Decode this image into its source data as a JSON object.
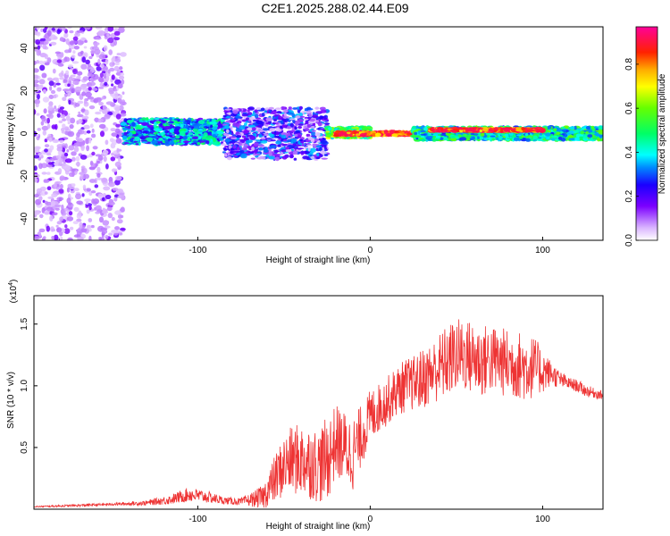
{
  "title": "C2E1.2025.288.02.44.E09",
  "chart_data": [
    {
      "type": "heatmap",
      "xlabel": "Height of straight line (km)",
      "ylabel": "Frequency (Hz)",
      "xlim": [
        -195,
        135
      ],
      "ylim": [
        -50,
        50
      ],
      "x_ticks": [
        {
          "value": -100,
          "label": "-100"
        },
        {
          "value": 0,
          "label": "0"
        },
        {
          "value": 100,
          "label": "100"
        }
      ],
      "y_ticks": [
        {
          "value": -40,
          "label": "-40"
        },
        {
          "value": -20,
          "label": "-20"
        },
        {
          "value": 0,
          "label": "0"
        },
        {
          "value": 20,
          "label": "20"
        },
        {
          "value": 40,
          "label": "40"
        }
      ],
      "colorbar": {
        "label": "Normalized spectral amplitude",
        "range": [
          0,
          0.97
        ],
        "ticks": [
          {
            "value": 0.0,
            "label": "0.0"
          },
          {
            "value": 0.2,
            "label": "0.2"
          },
          {
            "value": 0.4,
            "label": "0.4"
          },
          {
            "value": 0.6,
            "label": "0.6"
          },
          {
            "value": 0.8,
            "label": "0.8"
          }
        ]
      },
      "regions": [
        {
          "name": "noise",
          "x": [
            -195,
            -143
          ],
          "y": [
            -50,
            50
          ],
          "amplitude": 0.1
        },
        {
          "name": "band-early",
          "x": [
            -143,
            -85
          ],
          "y": [
            -5,
            7
          ],
          "amplitude": 0.35
        },
        {
          "name": "band-turbulent",
          "x": [
            -85,
            -25
          ],
          "y": [
            -12,
            12
          ],
          "amplitude": 0.2
        },
        {
          "name": "band-transition",
          "x": [
            -25,
            0
          ],
          "y": [
            -2,
            3
          ],
          "amplitude": 0.55
        },
        {
          "name": "band-strong",
          "x": [
            -20,
            25
          ],
          "y": [
            -0.8,
            0.8
          ],
          "amplitude": 0.9
        },
        {
          "name": "band-steady",
          "x": [
            25,
            135
          ],
          "y": [
            -3,
            3
          ],
          "amplitude": 0.45
        },
        {
          "name": "band-peak",
          "x": [
            35,
            100
          ],
          "y": [
            1.2,
            2.2
          ],
          "amplitude": 0.9
        }
      ]
    },
    {
      "type": "line",
      "xlabel": "Height of straight line (km)",
      "ylabel": "SNR (10 * v/v)",
      "y_multiplier": "(x10",
      "y_multiplier_exp": "4",
      "y_multiplier_close": ")",
      "xlim": [
        -195,
        135
      ],
      "ylim": [
        0,
        1.73
      ],
      "x_ticks": [
        {
          "value": -100,
          "label": "-100"
        },
        {
          "value": 0,
          "label": "0"
        },
        {
          "value": 100,
          "label": "100"
        }
      ],
      "y_ticks": [
        {
          "value": 0.5,
          "label": "0.5"
        },
        {
          "value": 1.0,
          "label": "1.0"
        },
        {
          "value": 1.5,
          "label": "1.5"
        }
      ],
      "series": [
        {
          "name": "SNR",
          "color": "#ee3333",
          "x": [
            -195,
            -170,
            -150,
            -130,
            -115,
            -105,
            -95,
            -85,
            -75,
            -68,
            -62,
            -55,
            -50,
            -45,
            -40,
            -35,
            -30,
            -25,
            -20,
            -15,
            -10,
            -5,
            0,
            5,
            10,
            15,
            20,
            25,
            30,
            35,
            40,
            45,
            50,
            55,
            60,
            65,
            70,
            75,
            80,
            85,
            90,
            95,
            100,
            105,
            110,
            115,
            120,
            125,
            130,
            135
          ],
          "y": [
            0.02,
            0.03,
            0.04,
            0.05,
            0.08,
            0.12,
            0.1,
            0.07,
            0.06,
            0.08,
            0.1,
            0.25,
            0.35,
            0.4,
            0.4,
            0.38,
            0.35,
            0.4,
            0.55,
            0.5,
            0.45,
            0.6,
            0.75,
            0.82,
            0.88,
            0.95,
            1.0,
            1.02,
            1.05,
            1.1,
            1.15,
            1.2,
            1.25,
            1.25,
            1.22,
            1.2,
            1.22,
            1.2,
            1.18,
            1.17,
            1.15,
            1.15,
            1.12,
            1.1,
            1.05,
            1.02,
            1.0,
            0.96,
            0.94,
            0.92
          ],
          "spread": [
            0.005,
            0.01,
            0.01,
            0.02,
            0.04,
            0.06,
            0.05,
            0.03,
            0.03,
            0.06,
            0.1,
            0.2,
            0.25,
            0.28,
            0.3,
            0.3,
            0.3,
            0.35,
            0.3,
            0.3,
            0.3,
            0.25,
            0.22,
            0.2,
            0.2,
            0.2,
            0.22,
            0.22,
            0.25,
            0.25,
            0.28,
            0.3,
            0.3,
            0.3,
            0.3,
            0.3,
            0.28,
            0.28,
            0.28,
            0.28,
            0.28,
            0.25,
            0.18,
            0.1,
            0.07,
            0.05,
            0.05,
            0.05,
            0.04,
            0.04
          ]
        }
      ]
    }
  ]
}
